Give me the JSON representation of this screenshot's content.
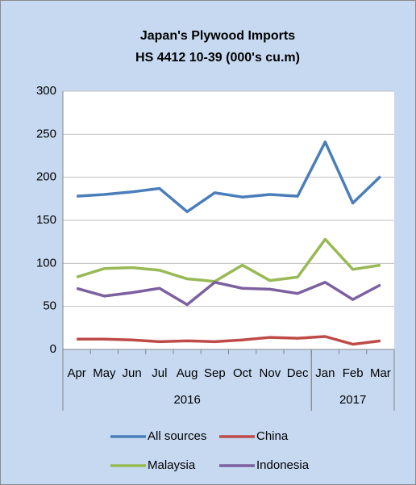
{
  "chart_data": {
    "type": "line",
    "title": "Japan's Plywood Imports",
    "subtitle": "HS 4412 10-39  (000's cu.m)",
    "categories": [
      "Apr",
      "May",
      "Jun",
      "Jul",
      "Aug",
      "Sep",
      "Oct",
      "Nov",
      "Dec",
      "Jan",
      "Feb",
      "Mar"
    ],
    "x_groups": [
      {
        "label": "2016",
        "start": 0,
        "end": 8
      },
      {
        "label": "2017",
        "start": 9,
        "end": 11
      }
    ],
    "series": [
      {
        "name": "All sources",
        "color": "#4a7ebb",
        "values": [
          178,
          180,
          183,
          187,
          160,
          182,
          177,
          180,
          178,
          241,
          170,
          201
        ]
      },
      {
        "name": "China",
        "color": "#be4b48",
        "values": [
          12,
          12,
          11,
          9,
          10,
          9,
          11,
          14,
          13,
          15,
          6,
          10
        ]
      },
      {
        "name": "Malaysia",
        "color": "#98b954",
        "values": [
          84,
          94,
          95,
          92,
          82,
          79,
          98,
          80,
          84,
          128,
          93,
          98
        ]
      },
      {
        "name": "Indonesia",
        "color": "#7d60a0",
        "values": [
          71,
          62,
          66,
          71,
          52,
          78,
          71,
          70,
          65,
          78,
          58,
          75
        ]
      }
    ],
    "ylim": [
      0,
      300
    ],
    "yticks": [
      0,
      50,
      100,
      150,
      200,
      250,
      300
    ],
    "grid": true,
    "legend": "bottom"
  }
}
